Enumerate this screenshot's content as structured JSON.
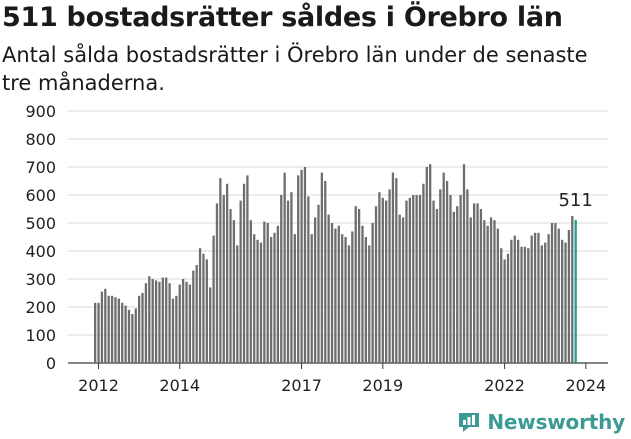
{
  "chart_data": {
    "type": "bar",
    "title": "511 bostadsrätter såldes i Örebro län",
    "subtitle": "Antal sålda bostadsrätter i Örebro län under de senaste tre månaderna.",
    "xlabel": "",
    "ylabel": "",
    "ylim": [
      0,
      900
    ],
    "yticks": [
      "0",
      "100",
      "200",
      "300",
      "400",
      "500",
      "600",
      "700",
      "800",
      "900"
    ],
    "xticks": [
      "2012",
      "2014",
      "2017",
      "2019",
      "2022",
      "2024"
    ],
    "grid": true,
    "start": "2011-12",
    "values": [
      215,
      215,
      255,
      265,
      240,
      240,
      235,
      230,
      215,
      205,
      190,
      175,
      195,
      240,
      250,
      285,
      310,
      300,
      295,
      290,
      305,
      305,
      285,
      230,
      240,
      280,
      300,
      290,
      280,
      330,
      350,
      410,
      390,
      370,
      270,
      455,
      570,
      660,
      600,
      640,
      550,
      510,
      420,
      580,
      640,
      670,
      510,
      460,
      440,
      430,
      505,
      500,
      450,
      465,
      490,
      600,
      680,
      580,
      610,
      460,
      670,
      690,
      700,
      595,
      460,
      520,
      565,
      680,
      650,
      530,
      500,
      480,
      490,
      460,
      450,
      420,
      470,
      560,
      550,
      490,
      450,
      420,
      500,
      560,
      610,
      590,
      580,
      620,
      680,
      660,
      530,
      520,
      580,
      590,
      600,
      600,
      600,
      640,
      700,
      710,
      580,
      550,
      620,
      680,
      650,
      600,
      540,
      560,
      600,
      710,
      620,
      520,
      570,
      570,
      550,
      510,
      490,
      520,
      510,
      480,
      410,
      370,
      390,
      440,
      455,
      440,
      415,
      415,
      410,
      455,
      465,
      465,
      420,
      430,
      460,
      500,
      500,
      480,
      440,
      430,
      475,
      525,
      511
    ],
    "highlight": {
      "label": "511",
      "value": 511,
      "color": "#1f9e96"
    },
    "bar_color": "#6d6e70"
  },
  "brand": {
    "name": "Newsworthy",
    "icon": "newsworthy-logo-icon",
    "color": "#3b9b94"
  }
}
